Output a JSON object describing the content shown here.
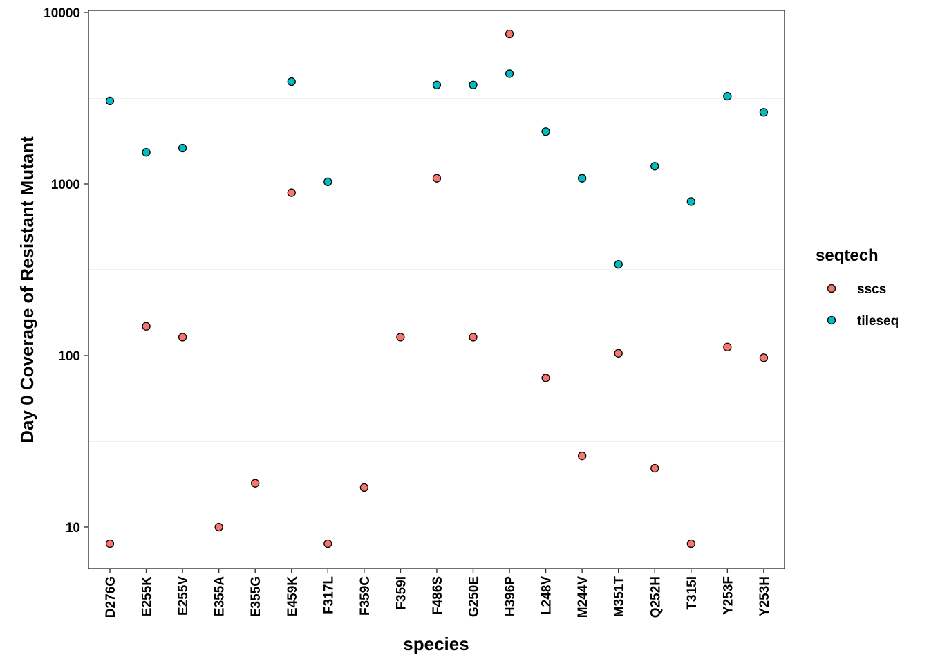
{
  "chart_data": {
    "type": "scatter",
    "xlabel": "species",
    "ylabel": "Day 0 Coverage of Resistant Mutant",
    "y_scale": "log10",
    "ylim": [
      6,
      10000
    ],
    "y_ticks": [
      10,
      100,
      1000,
      10000
    ],
    "y_tick_labels": [
      "10",
      "100",
      "1000",
      "10000"
    ],
    "grid": "minor horizontal only",
    "legend": {
      "title": "seqtech",
      "placement": "right"
    },
    "categories": [
      "D276G",
      "E255K",
      "E255V",
      "E355A",
      "E355G",
      "E459K",
      "F317L",
      "F359C",
      "F359I",
      "F486S",
      "G250E",
      "H396P",
      "L248V",
      "M244V",
      "M351T",
      "Q252H",
      "T315I",
      "Y253F",
      "Y253H"
    ],
    "series": [
      {
        "name": "sscs",
        "color": "#F8766D",
        "points": [
          [
            "D276G",
            8
          ],
          [
            "E255K",
            148
          ],
          [
            "E255V",
            128
          ],
          [
            "E355A",
            10
          ],
          [
            "E355G",
            18
          ],
          [
            "E459K",
            890
          ],
          [
            "F317L",
            8
          ],
          [
            "F359C",
            17
          ],
          [
            "F359I",
            128
          ],
          [
            "F486S",
            1080
          ],
          [
            "G250E",
            128
          ],
          [
            "H396P",
            7500
          ],
          [
            "L248V",
            74
          ],
          [
            "M244V",
            26
          ],
          [
            "M351T",
            103
          ],
          [
            "Q252H",
            22
          ],
          [
            "T315I",
            8
          ],
          [
            "Y253F",
            112
          ],
          [
            "Y253H",
            97
          ]
        ]
      },
      {
        "name": "tileseq",
        "color": "#00BFC4",
        "points": [
          [
            "D276G",
            3050
          ],
          [
            "E255K",
            1530
          ],
          [
            "E255V",
            1620
          ],
          [
            "E459K",
            3950
          ],
          [
            "F317L",
            1030
          ],
          [
            "F486S",
            3780
          ],
          [
            "G250E",
            3780
          ],
          [
            "H396P",
            4400
          ],
          [
            "L248V",
            2020
          ],
          [
            "M244V",
            1080
          ],
          [
            "M351T",
            340
          ],
          [
            "Q252H",
            1270
          ],
          [
            "T315I",
            790
          ],
          [
            "Y253F",
            3250
          ],
          [
            "Y253H",
            2620
          ]
        ]
      }
    ]
  }
}
